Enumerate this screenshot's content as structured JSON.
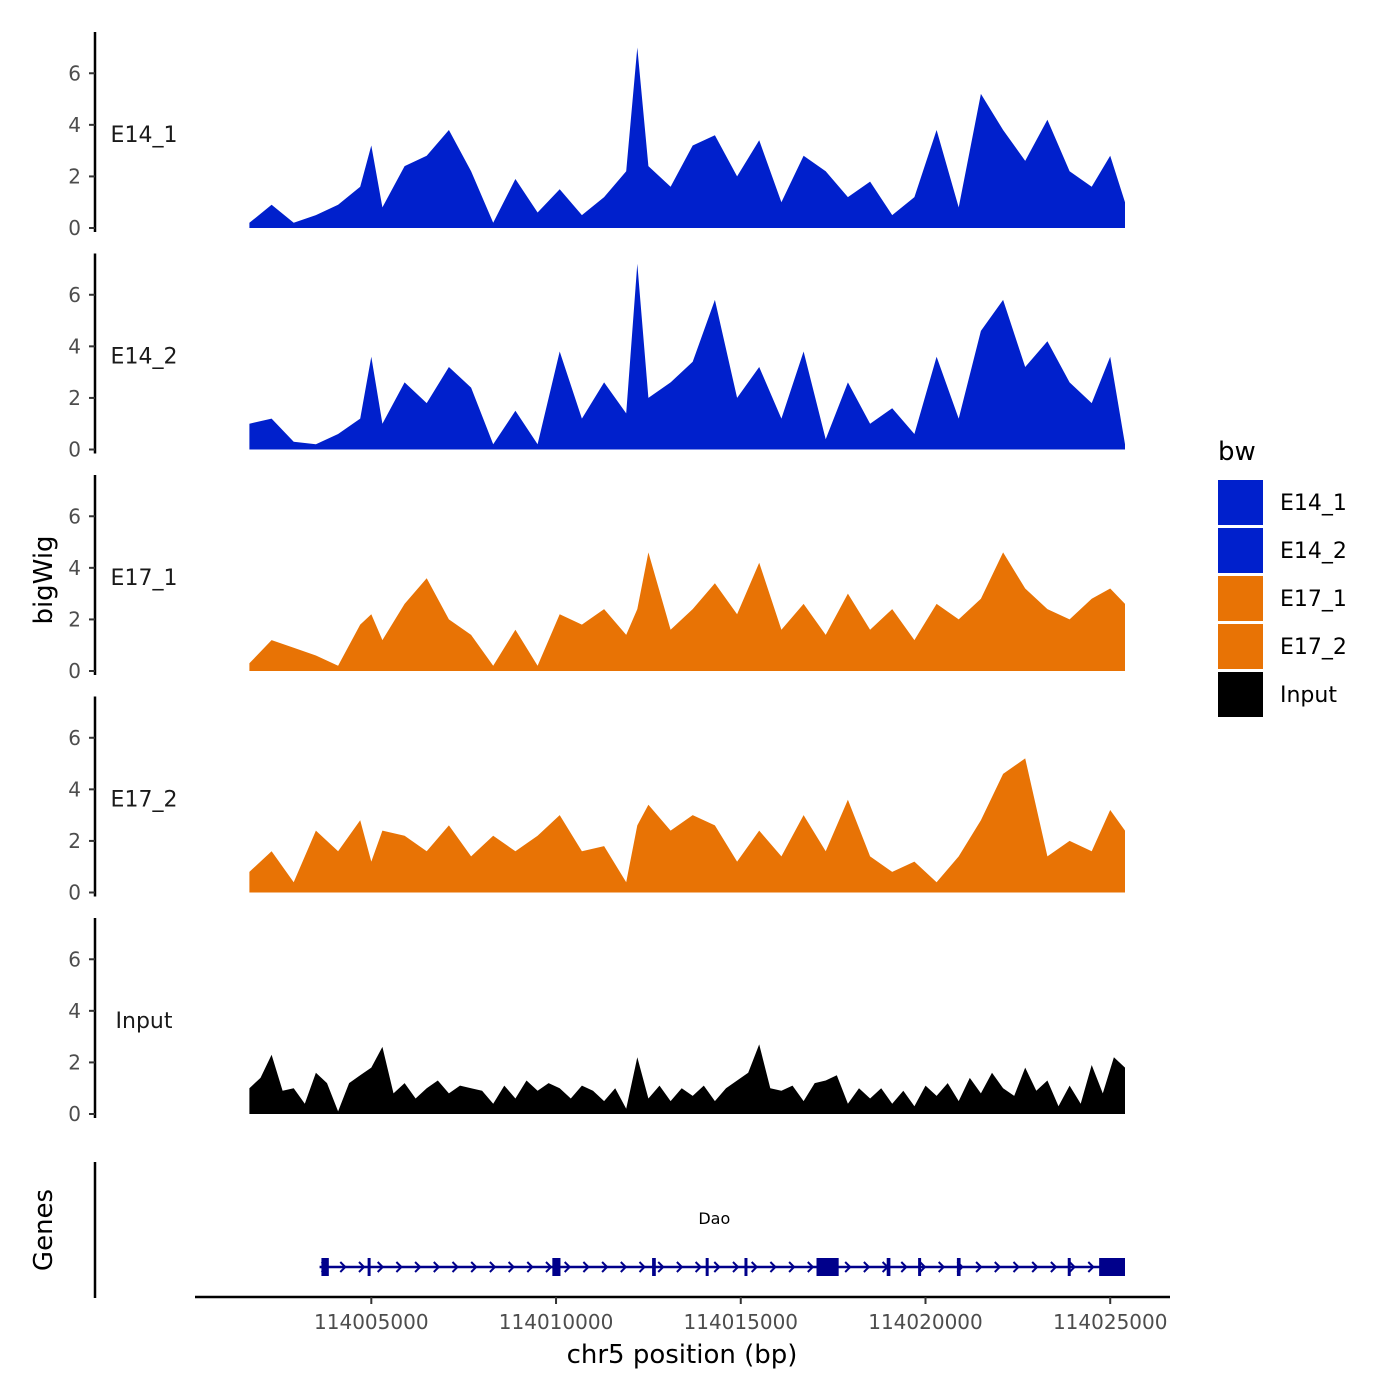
{
  "chart_data": {
    "type": "area",
    "ylabel": "bigWig",
    "xlabel": "chr5 position (bp)",
    "x_range": [
      114001500,
      114025400
    ],
    "ylim": [
      0,
      7.6
    ],
    "y_ticks": [
      0,
      2,
      4,
      6
    ],
    "x_ticks": [
      114005000,
      114010000,
      114015000,
      114020000,
      114025000
    ],
    "x_tick_labels": [
      "114005000",
      "114010000",
      "114015000",
      "114020000",
      "114025000"
    ],
    "tracks": [
      {
        "name": "E14_1",
        "group": "E14_1",
        "color": "#0020CC",
        "x": [
          114001700,
          114002300,
          114002900,
          114003500,
          114004100,
          114004700,
          114005000,
          114005300,
          114005900,
          114006500,
          114007100,
          114007700,
          114008300,
          114008900,
          114009500,
          114010100,
          114010700,
          114011300,
          114011900,
          114012200,
          114012500,
          114013100,
          114013700,
          114014300,
          114014900,
          114015500,
          114016100,
          114016700,
          114017300,
          114017900,
          114018500,
          114019100,
          114019700,
          114020300,
          114020900,
          114021500,
          114022100,
          114022700,
          114023300,
          114023900,
          114024500,
          114025000,
          114025400
        ],
        "values": [
          0.2,
          0.9,
          0.2,
          0.5,
          0.9,
          1.6,
          3.2,
          0.8,
          2.4,
          2.8,
          3.8,
          2.2,
          0.2,
          1.9,
          0.6,
          1.5,
          0.5,
          1.2,
          2.2,
          7.0,
          2.4,
          1.6,
          3.2,
          3.6,
          2.0,
          3.4,
          1.0,
          2.8,
          2.2,
          1.2,
          1.8,
          0.5,
          1.2,
          3.8,
          0.8,
          5.2,
          3.8,
          2.6,
          4.2,
          2.2,
          1.6,
          2.8,
          1.0
        ]
      },
      {
        "name": "E14_2",
        "group": "E14_2",
        "color": "#0020CC",
        "x": [
          114001700,
          114002300,
          114002900,
          114003500,
          114004100,
          114004700,
          114005000,
          114005300,
          114005900,
          114006500,
          114007100,
          114007700,
          114008300,
          114008900,
          114009500,
          114010100,
          114010700,
          114011300,
          114011900,
          114012200,
          114012500,
          114013100,
          114013700,
          114014300,
          114014900,
          114015500,
          114016100,
          114016700,
          114017300,
          114017900,
          114018500,
          114019100,
          114019700,
          114020300,
          114020900,
          114021500,
          114022100,
          114022700,
          114023300,
          114023900,
          114024500,
          114025000,
          114025400
        ],
        "values": [
          1.0,
          1.2,
          0.3,
          0.2,
          0.6,
          1.2,
          3.6,
          1.0,
          2.6,
          1.8,
          3.2,
          2.4,
          0.2,
          1.5,
          0.2,
          3.8,
          1.2,
          2.6,
          1.4,
          7.2,
          2.0,
          2.6,
          3.4,
          5.8,
          2.0,
          3.2,
          1.2,
          3.8,
          0.4,
          2.6,
          1.0,
          1.6,
          0.6,
          3.6,
          1.2,
          4.6,
          5.8,
          3.2,
          4.2,
          2.6,
          1.8,
          3.6,
          0.2
        ]
      },
      {
        "name": "E17_1",
        "group": "E17_1",
        "color": "#E87305",
        "x": [
          114001700,
          114002300,
          114002900,
          114003500,
          114004100,
          114004700,
          114005000,
          114005300,
          114005900,
          114006500,
          114007100,
          114007700,
          114008300,
          114008900,
          114009500,
          114010100,
          114010700,
          114011300,
          114011900,
          114012200,
          114012500,
          114013100,
          114013700,
          114014300,
          114014900,
          114015500,
          114016100,
          114016700,
          114017300,
          114017900,
          114018500,
          114019100,
          114019700,
          114020300,
          114020900,
          114021500,
          114022100,
          114022700,
          114023300,
          114023900,
          114024500,
          114025000,
          114025400
        ],
        "values": [
          0.3,
          1.2,
          0.9,
          0.6,
          0.2,
          1.8,
          2.2,
          1.2,
          2.6,
          3.6,
          2.0,
          1.4,
          0.2,
          1.6,
          0.2,
          2.2,
          1.8,
          2.4,
          1.4,
          2.4,
          4.6,
          1.6,
          2.4,
          3.4,
          2.2,
          4.2,
          1.6,
          2.6,
          1.4,
          3.0,
          1.6,
          2.4,
          1.2,
          2.6,
          2.0,
          2.8,
          4.6,
          3.2,
          2.4,
          2.0,
          2.8,
          3.2,
          2.6
        ]
      },
      {
        "name": "E17_2",
        "group": "E17_2",
        "color": "#E87305",
        "x": [
          114001700,
          114002300,
          114002900,
          114003500,
          114004100,
          114004700,
          114005000,
          114005300,
          114005900,
          114006500,
          114007100,
          114007700,
          114008300,
          114008900,
          114009500,
          114010100,
          114010700,
          114011300,
          114011900,
          114012200,
          114012500,
          114013100,
          114013700,
          114014300,
          114014900,
          114015500,
          114016100,
          114016700,
          114017300,
          114017900,
          114018500,
          114019100,
          114019700,
          114020300,
          114020900,
          114021500,
          114022100,
          114022700,
          114023300,
          114023900,
          114024500,
          114025000,
          114025400
        ],
        "values": [
          0.8,
          1.6,
          0.4,
          2.4,
          1.6,
          2.8,
          1.2,
          2.4,
          2.2,
          1.6,
          2.6,
          1.4,
          2.2,
          1.6,
          2.2,
          3.0,
          1.6,
          1.8,
          0.4,
          2.6,
          3.4,
          2.4,
          3.0,
          2.6,
          1.2,
          2.4,
          1.4,
          3.0,
          1.6,
          3.6,
          1.4,
          0.8,
          1.2,
          0.4,
          1.4,
          2.8,
          4.6,
          5.2,
          1.4,
          2.0,
          1.6,
          3.2,
          2.4
        ]
      },
      {
        "name": "Input",
        "group": "Input",
        "color": "#000000",
        "x": [
          114001700,
          114002000,
          114002300,
          114002600,
          114002900,
          114003200,
          114003500,
          114003800,
          114004100,
          114004400,
          114004700,
          114005000,
          114005300,
          114005600,
          114005900,
          114006200,
          114006500,
          114006800,
          114007100,
          114007400,
          114007700,
          114008000,
          114008300,
          114008600,
          114008900,
          114009200,
          114009500,
          114009800,
          114010100,
          114010400,
          114010700,
          114011000,
          114011300,
          114011600,
          114011900,
          114012200,
          114012500,
          114012800,
          114013100,
          114013400,
          114013700,
          114014000,
          114014300,
          114014600,
          114014900,
          114015200,
          114015500,
          114015800,
          114016100,
          114016400,
          114016700,
          114017000,
          114017300,
          114017600,
          114017900,
          114018200,
          114018500,
          114018800,
          114019100,
          114019400,
          114019700,
          114020000,
          114020300,
          114020600,
          114020900,
          114021200,
          114021500,
          114021800,
          114022100,
          114022400,
          114022700,
          114023000,
          114023300,
          114023600,
          114023900,
          114024200,
          114024500,
          114024800,
          114025100,
          114025400
        ],
        "values": [
          1.0,
          1.4,
          2.3,
          0.9,
          1.0,
          0.4,
          1.6,
          1.2,
          0.1,
          1.2,
          1.5,
          1.8,
          2.6,
          0.8,
          1.2,
          0.6,
          1.0,
          1.3,
          0.8,
          1.1,
          1.0,
          0.9,
          0.4,
          1.1,
          0.6,
          1.3,
          0.9,
          1.2,
          1.0,
          0.6,
          1.1,
          0.9,
          0.5,
          1.0,
          0.2,
          2.2,
          0.6,
          1.1,
          0.5,
          1.0,
          0.7,
          1.1,
          0.5,
          1.0,
          1.3,
          1.6,
          2.7,
          1.0,
          0.9,
          1.1,
          0.5,
          1.2,
          1.3,
          1.5,
          0.4,
          1.0,
          0.6,
          1.0,
          0.4,
          0.9,
          0.3,
          1.1,
          0.7,
          1.2,
          0.5,
          1.4,
          0.8,
          1.6,
          1.0,
          0.7,
          1.8,
          0.9,
          1.3,
          0.3,
          1.1,
          0.4,
          1.9,
          0.8,
          2.2,
          1.8
        ]
      }
    ],
    "legend": {
      "title": "bw",
      "position": "right",
      "entries": [
        {
          "label": "E14_1",
          "color": "#0020CC"
        },
        {
          "label": "E14_2",
          "color": "#0020CC"
        },
        {
          "label": "E17_1",
          "color": "#E87305"
        },
        {
          "label": "E17_2",
          "color": "#E87305"
        },
        {
          "label": "Input",
          "color": "#000000"
        }
      ]
    },
    "gene_track": {
      "label": "Genes",
      "color": "#00008B",
      "genes": [
        {
          "name": "Dao",
          "strand": "+",
          "start": 114003600,
          "end": 114025400,
          "exons": [
            {
              "start": 114003650,
              "end": 114003850
            },
            {
              "start": 114004900,
              "end": 114004960
            },
            {
              "start": 114009900,
              "end": 114010120
            },
            {
              "start": 114012600,
              "end": 114012700
            },
            {
              "start": 114014050,
              "end": 114014120
            },
            {
              "start": 114015100,
              "end": 114015170
            },
            {
              "start": 114017050,
              "end": 114017650
            },
            {
              "start": 114018950,
              "end": 114019050
            },
            {
              "start": 114019800,
              "end": 114019870
            },
            {
              "start": 114020850,
              "end": 114020950
            },
            {
              "start": 114023850,
              "end": 114023920
            },
            {
              "start": 114024700,
              "end": 114025400
            }
          ]
        }
      ]
    }
  }
}
